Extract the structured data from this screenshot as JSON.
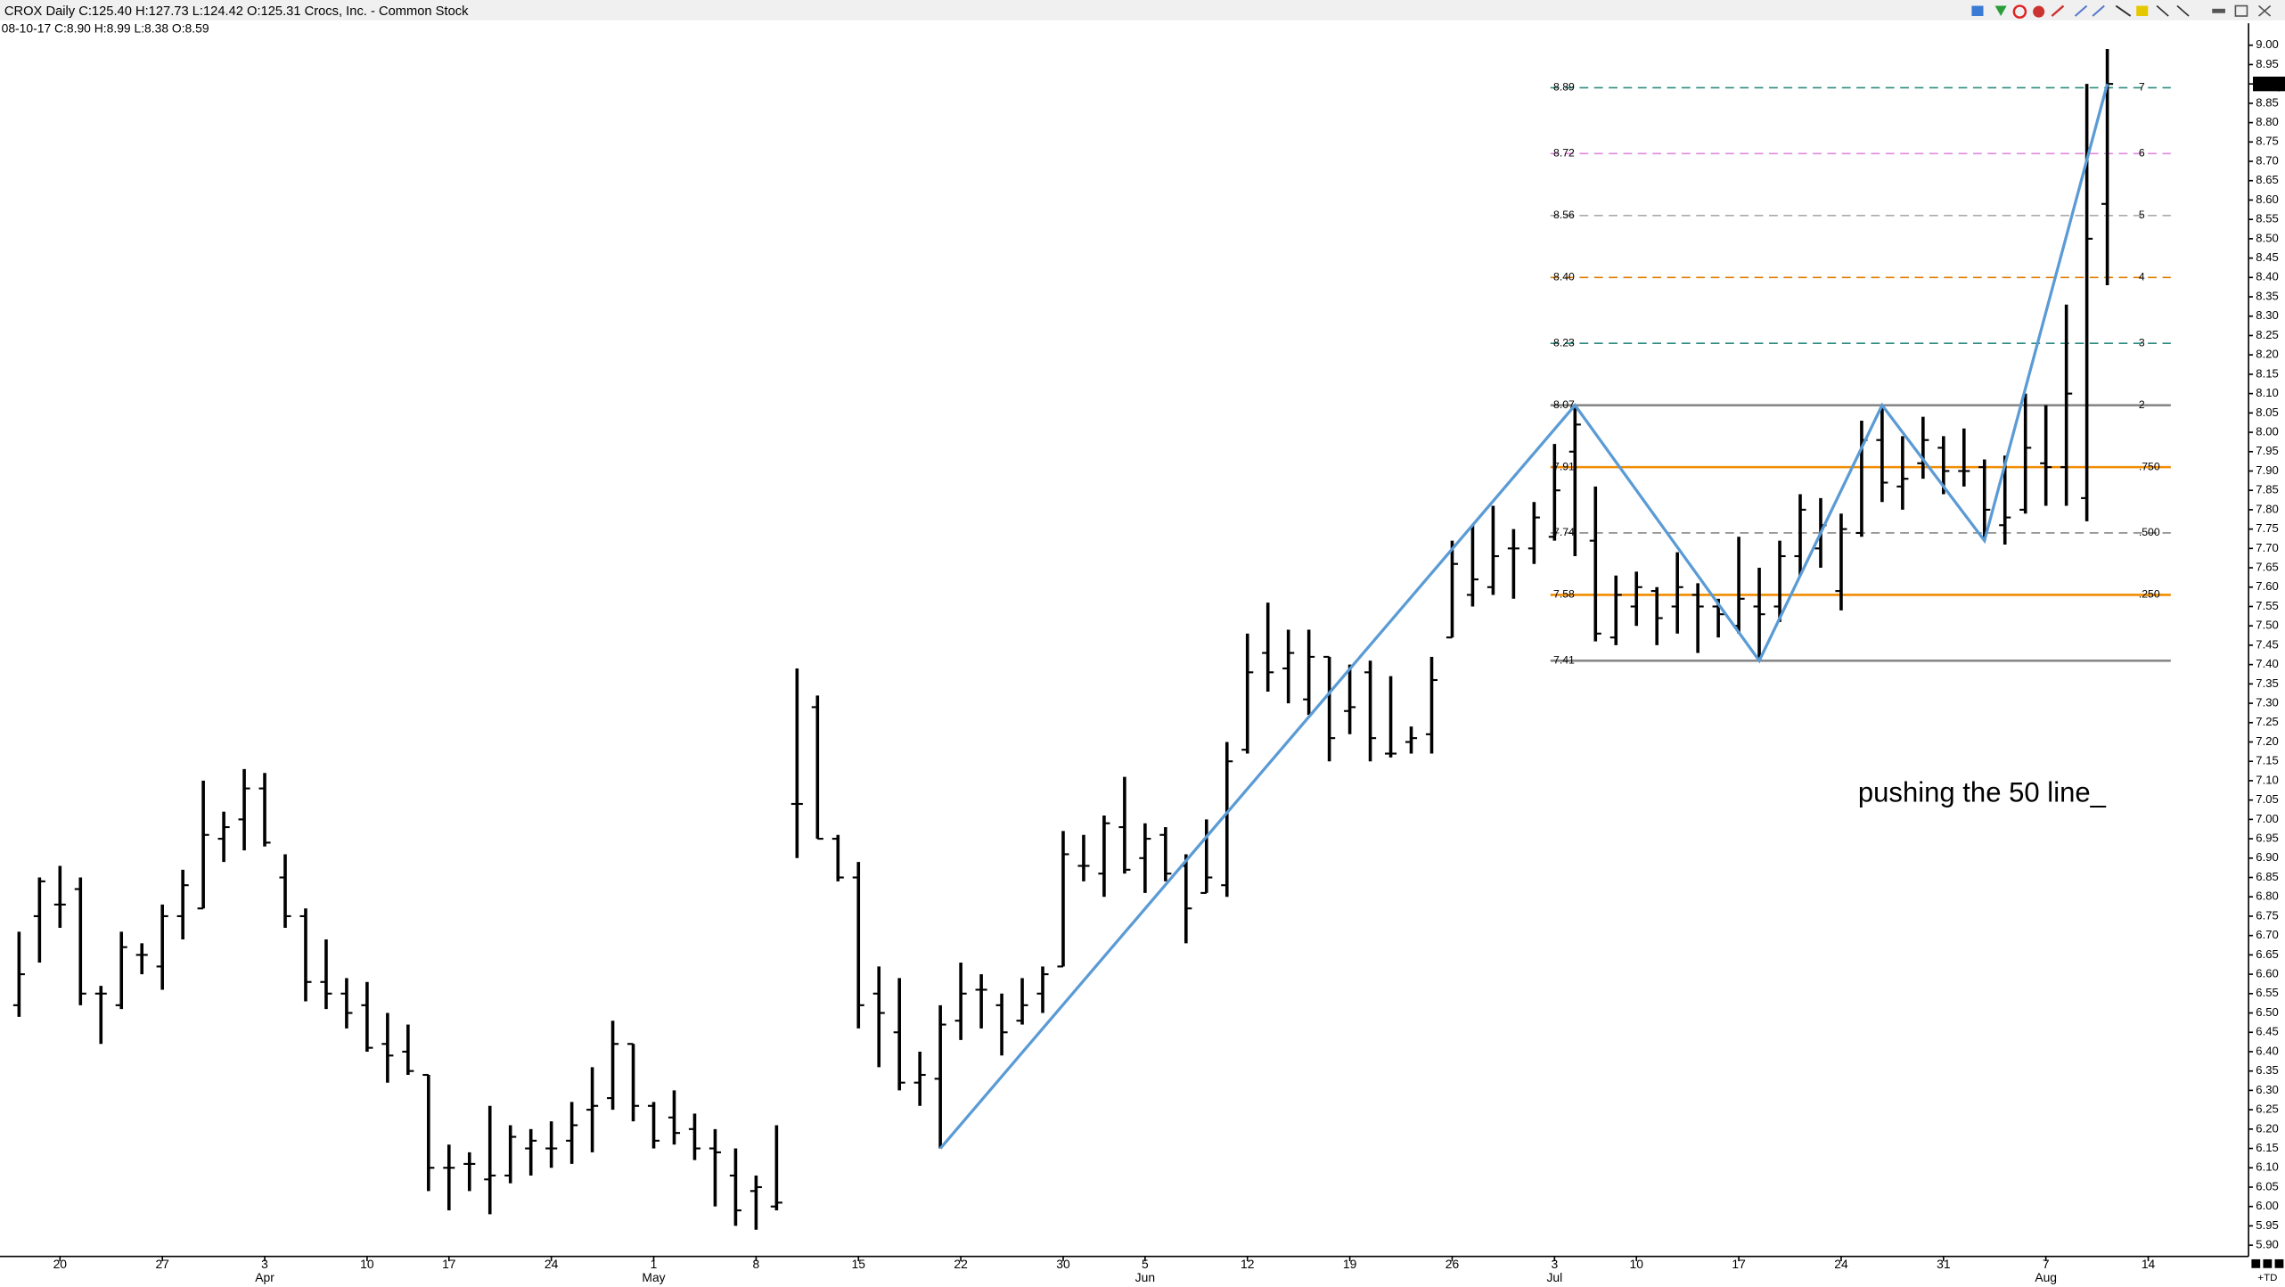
{
  "chart_data": {
    "type": "ohlc",
    "title": "CROX Daily C:125.40 H:127.73 L:124.42 O:125.31 Crocs, Inc. - Common Stock",
    "subtitle": "08-10-17 C:8.90 H:8.99 L:8.38 O:8.59",
    "open": [
      6.52,
      6.75,
      6.78,
      6.82,
      6.55,
      6.52,
      6.65,
      6.62,
      6.75,
      6.77,
      6.95,
      7.0,
      7.08,
      6.85,
      6.75,
      6.58,
      6.55,
      6.52,
      6.42,
      6.4,
      6.34,
      6.1,
      6.11,
      6.07,
      6.08,
      6.15,
      6.15,
      6.17,
      6.25,
      6.28,
      6.42,
      6.26,
      6.23,
      6.2,
      6.15,
      6.08,
      6.04,
      6.0,
      7.04,
      7.29,
      6.95,
      6.85,
      6.55,
      6.45,
      6.32,
      6.33,
      6.48,
      6.56,
      6.52,
      6.48,
      6.55,
      6.62,
      6.88,
      6.86,
      6.98,
      6.9,
      6.96,
      6.88,
      6.81,
      6.83,
      7.18,
      7.43,
      7.39,
      7.31,
      7.42,
      7.28,
      7.38,
      7.17,
      7.2,
      7.22,
      7.47,
      7.58,
      7.6,
      7.7,
      7.7,
      7.73,
      7.95,
      7.72,
      7.47,
      7.55,
      7.59,
      7.55,
      7.58,
      7.55,
      7.5,
      7.55,
      7.55,
      7.68,
      7.7,
      7.59,
      7.74,
      7.98,
      7.86,
      7.92,
      7.96,
      7.9,
      7.91,
      7.76,
      7.8,
      7.92,
      7.91,
      7.83,
      8.59
    ],
    "high": [
      6.71,
      6.85,
      6.88,
      6.85,
      6.57,
      6.71,
      6.68,
      6.78,
      6.87,
      7.1,
      7.02,
      7.13,
      7.12,
      6.91,
      6.77,
      6.69,
      6.59,
      6.58,
      6.5,
      6.47,
      6.34,
      6.16,
      6.14,
      6.26,
      6.21,
      6.2,
      6.22,
      6.27,
      6.36,
      6.48,
      6.42,
      6.27,
      6.3,
      6.24,
      6.2,
      6.15,
      6.08,
      6.21,
      7.39,
      7.32,
      6.96,
      6.89,
      6.62,
      6.59,
      6.4,
      6.52,
      6.63,
      6.6,
      6.55,
      6.59,
      6.62,
      6.97,
      6.96,
      7.01,
      7.11,
      6.99,
      6.98,
      6.91,
      7.0,
      7.2,
      7.48,
      7.56,
      7.49,
      7.49,
      7.42,
      7.4,
      7.41,
      7.37,
      7.24,
      7.42,
      7.72,
      7.76,
      7.81,
      7.75,
      7.82,
      7.97,
      8.07,
      7.86,
      7.63,
      7.64,
      7.6,
      7.69,
      7.61,
      7.57,
      7.73,
      7.65,
      7.72,
      7.84,
      7.83,
      7.79,
      8.03,
      8.07,
      7.99,
      8.04,
      7.99,
      8.01,
      7.93,
      7.94,
      8.1,
      8.07,
      8.33,
      8.9,
      8.99
    ],
    "low": [
      6.49,
      6.63,
      6.72,
      6.52,
      6.42,
      6.51,
      6.6,
      6.56,
      6.69,
      6.77,
      6.89,
      6.92,
      6.93,
      6.72,
      6.53,
      6.51,
      6.46,
      6.4,
      6.32,
      6.34,
      6.04,
      5.99,
      6.04,
      5.98,
      6.06,
      6.08,
      6.1,
      6.11,
      6.14,
      6.25,
      6.22,
      6.15,
      6.16,
      6.12,
      6.0,
      5.95,
      5.94,
      5.99,
      6.9,
      6.95,
      6.84,
      6.46,
      6.36,
      6.3,
      6.26,
      6.15,
      6.43,
      6.46,
      6.39,
      6.47,
      6.5,
      6.62,
      6.84,
      6.8,
      6.86,
      6.81,
      6.84,
      6.68,
      6.81,
      6.8,
      7.17,
      7.33,
      7.3,
      7.27,
      7.15,
      7.22,
      7.15,
      7.16,
      7.17,
      7.17,
      7.47,
      7.55,
      7.58,
      7.57,
      7.66,
      7.72,
      7.68,
      7.46,
      7.45,
      7.5,
      7.45,
      7.48,
      7.43,
      7.47,
      7.48,
      7.41,
      7.51,
      7.63,
      7.65,
      7.54,
      7.73,
      7.82,
      7.8,
      7.88,
      7.84,
      7.86,
      7.72,
      7.71,
      7.79,
      7.81,
      7.81,
      7.77,
      8.38
    ],
    "close": [
      6.6,
      6.84,
      6.78,
      6.55,
      6.55,
      6.67,
      6.65,
      6.75,
      6.83,
      6.96,
      6.98,
      7.08,
      6.94,
      6.75,
      6.58,
      6.55,
      6.5,
      6.41,
      6.39,
      6.35,
      6.1,
      6.1,
      6.11,
      6.08,
      6.18,
      6.17,
      6.15,
      6.21,
      6.26,
      6.42,
      6.26,
      6.17,
      6.19,
      6.15,
      6.14,
      5.99,
      6.05,
      6.01,
      7.04,
      6.95,
      6.85,
      6.52,
      6.5,
      6.32,
      6.34,
      6.47,
      6.55,
      6.56,
      6.45,
      6.52,
      6.6,
      6.91,
      6.88,
      6.99,
      6.87,
      6.95,
      6.86,
      6.77,
      6.85,
      7.15,
      7.38,
      7.38,
      7.43,
      7.42,
      7.21,
      7.29,
      7.21,
      7.17,
      7.21,
      7.36,
      7.66,
      7.62,
      7.68,
      7.7,
      7.78,
      7.85,
      8.02,
      7.48,
      7.58,
      7.6,
      7.52,
      7.6,
      7.55,
      7.53,
      7.57,
      7.53,
      7.68,
      7.8,
      7.76,
      7.75,
      7.98,
      7.87,
      7.88,
      7.98,
      7.9,
      7.9,
      7.8,
      7.78,
      7.96,
      7.91,
      8.1,
      8.5,
      8.9
    ],
    "color": "#000000",
    "xlim": [
      -0.93,
      108.9
    ],
    "xticks": [
      {
        "value": 2,
        "label": "20"
      },
      {
        "value": 7,
        "label": "27"
      },
      {
        "value": 12,
        "label": "3"
      },
      {
        "value": 17,
        "label": "10"
      },
      {
        "value": 21,
        "label": "17"
      },
      {
        "value": 26,
        "label": "24"
      },
      {
        "value": 31,
        "label": "1"
      },
      {
        "value": 36,
        "label": "8"
      },
      {
        "value": 41,
        "label": "15"
      },
      {
        "value": 46,
        "label": "22"
      },
      {
        "value": 51,
        "label": "30"
      },
      {
        "value": 55,
        "label": "5"
      },
      {
        "value": 60,
        "label": "12"
      },
      {
        "value": 65,
        "label": "19"
      },
      {
        "value": 70,
        "label": "26"
      },
      {
        "value": 75,
        "label": "3"
      },
      {
        "value": 79,
        "label": "10"
      },
      {
        "value": 84,
        "label": "17"
      },
      {
        "value": 89,
        "label": "24"
      },
      {
        "value": 94,
        "label": "31"
      },
      {
        "value": 99,
        "label": "7"
      },
      {
        "value": 104,
        "label": "14"
      }
    ],
    "month_ticks": [
      {
        "value": 12,
        "label": "Apr"
      },
      {
        "value": 31,
        "label": "May"
      },
      {
        "value": 55,
        "label": "Jun"
      },
      {
        "value": 75,
        "label": "Jul"
      },
      {
        "value": 99,
        "label": "Aug"
      }
    ],
    "ylim": [
      5.87,
      9.02
    ],
    "yticks": [
      {
        "value": 9,
        "label": "9.00"
      },
      8.95,
      {
        "value": 8.9,
        "label": "8.90"
      },
      8.85,
      {
        "value": 8.8,
        "label": "8.80"
      },
      8.75,
      {
        "value": 8.7,
        "label": "8.70"
      },
      8.65,
      {
        "value": 8.6,
        "label": "8.60"
      },
      8.55,
      {
        "value": 8.5,
        "label": "8.50"
      },
      8.45,
      {
        "value": 8.4,
        "label": "8.40"
      },
      8.35,
      {
        "value": 8.3,
        "label": "8.30"
      },
      8.25,
      {
        "value": 8.2,
        "label": "8.20"
      },
      8.15,
      {
        "value": 8.1,
        "label": "8.10"
      },
      8.05,
      {
        "value": 8,
        "label": "8.00"
      },
      7.95,
      {
        "value": 7.9,
        "label": "7.90"
      },
      7.85,
      {
        "value": 7.8,
        "label": "7.80"
      },
      7.75,
      {
        "value": 7.7,
        "label": "7.70"
      },
      7.65,
      {
        "value": 7.6,
        "label": "7.60"
      },
      7.55,
      {
        "value": 7.5,
        "label": "7.50"
      },
      7.45,
      {
        "value": 7.4,
        "label": "7.40"
      },
      7.35,
      {
        "value": 7.3,
        "label": "7.30"
      },
      7.25,
      {
        "value": 7.2,
        "label": "7.20"
      },
      7.15,
      {
        "value": 7.1,
        "label": "7.10"
      },
      7.05,
      {
        "value": 7,
        "label": "7.00"
      },
      6.95,
      {
        "value": 6.9,
        "label": "6.90"
      },
      6.85,
      {
        "value": 6.8,
        "label": "6.80"
      },
      6.75,
      {
        "value": 6.7,
        "label": "6.70"
      },
      6.65,
      {
        "value": 6.6,
        "label": "6.60"
      },
      6.55,
      {
        "value": 6.5,
        "label": "6.50"
      },
      6.45,
      {
        "value": 6.4,
        "label": "6.40"
      },
      6.35,
      {
        "value": 6.3,
        "label": "6.30"
      },
      6.25,
      {
        "value": 6.2,
        "label": "6.20"
      },
      6.15,
      {
        "value": 6.1,
        "label": "6.10"
      },
      6.05,
      {
        "value": 6,
        "label": "6.00"
      },
      5.95,
      {
        "value": 5.9,
        "label": "5.90"
      }
    ],
    "zigzag": {
      "color": "#5b9bd5",
      "x": [
        45,
        76,
        85,
        91,
        96,
        102
      ],
      "y": [
        6.15,
        8.07,
        7.41,
        8.07,
        7.72,
        8.9
      ]
    },
    "fib_span": [
      74.8,
      105.1
    ],
    "fib_levels": [
      {
        "value": 8.89,
        "left_label": "8.89",
        "right_label": "7",
        "color": "#2e8b80",
        "dashed": true
      },
      {
        "value": 8.72,
        "left_label": "8.72",
        "right_label": "6",
        "color": "#e08ae0",
        "dashed": true
      },
      {
        "value": 8.56,
        "left_label": "8.56",
        "right_label": "5",
        "color": "#aaaaaa",
        "dashed": true
      },
      {
        "value": 8.4,
        "left_label": "8.40",
        "right_label": "4",
        "color": "#e07b00",
        "dashed": true
      },
      {
        "value": 8.23,
        "left_label": "8.23",
        "right_label": "3",
        "color": "#2e8b80",
        "dashed": true
      },
      {
        "value": 8.07,
        "left_label": "8.07",
        "right_label": "2",
        "color": "#888888",
        "dashed": false
      },
      {
        "value": 7.91,
        "left_label": "7.91",
        "right_label": ".750",
        "color": "#f08c00",
        "dashed": false
      },
      {
        "value": 7.74,
        "left_label": "7.74",
        "right_label": ".500",
        "color": "#888888",
        "dashed": true
      },
      {
        "value": 7.58,
        "left_label": "7.58",
        "right_label": ".250",
        "color": "#f08c00",
        "dashed": false
      },
      {
        "value": 7.41,
        "left_label": "7.41",
        "color": "#888888",
        "dashed": false
      }
    ],
    "annotation": "pushing the 50 line_",
    "corner_label": "+TD"
  }
}
